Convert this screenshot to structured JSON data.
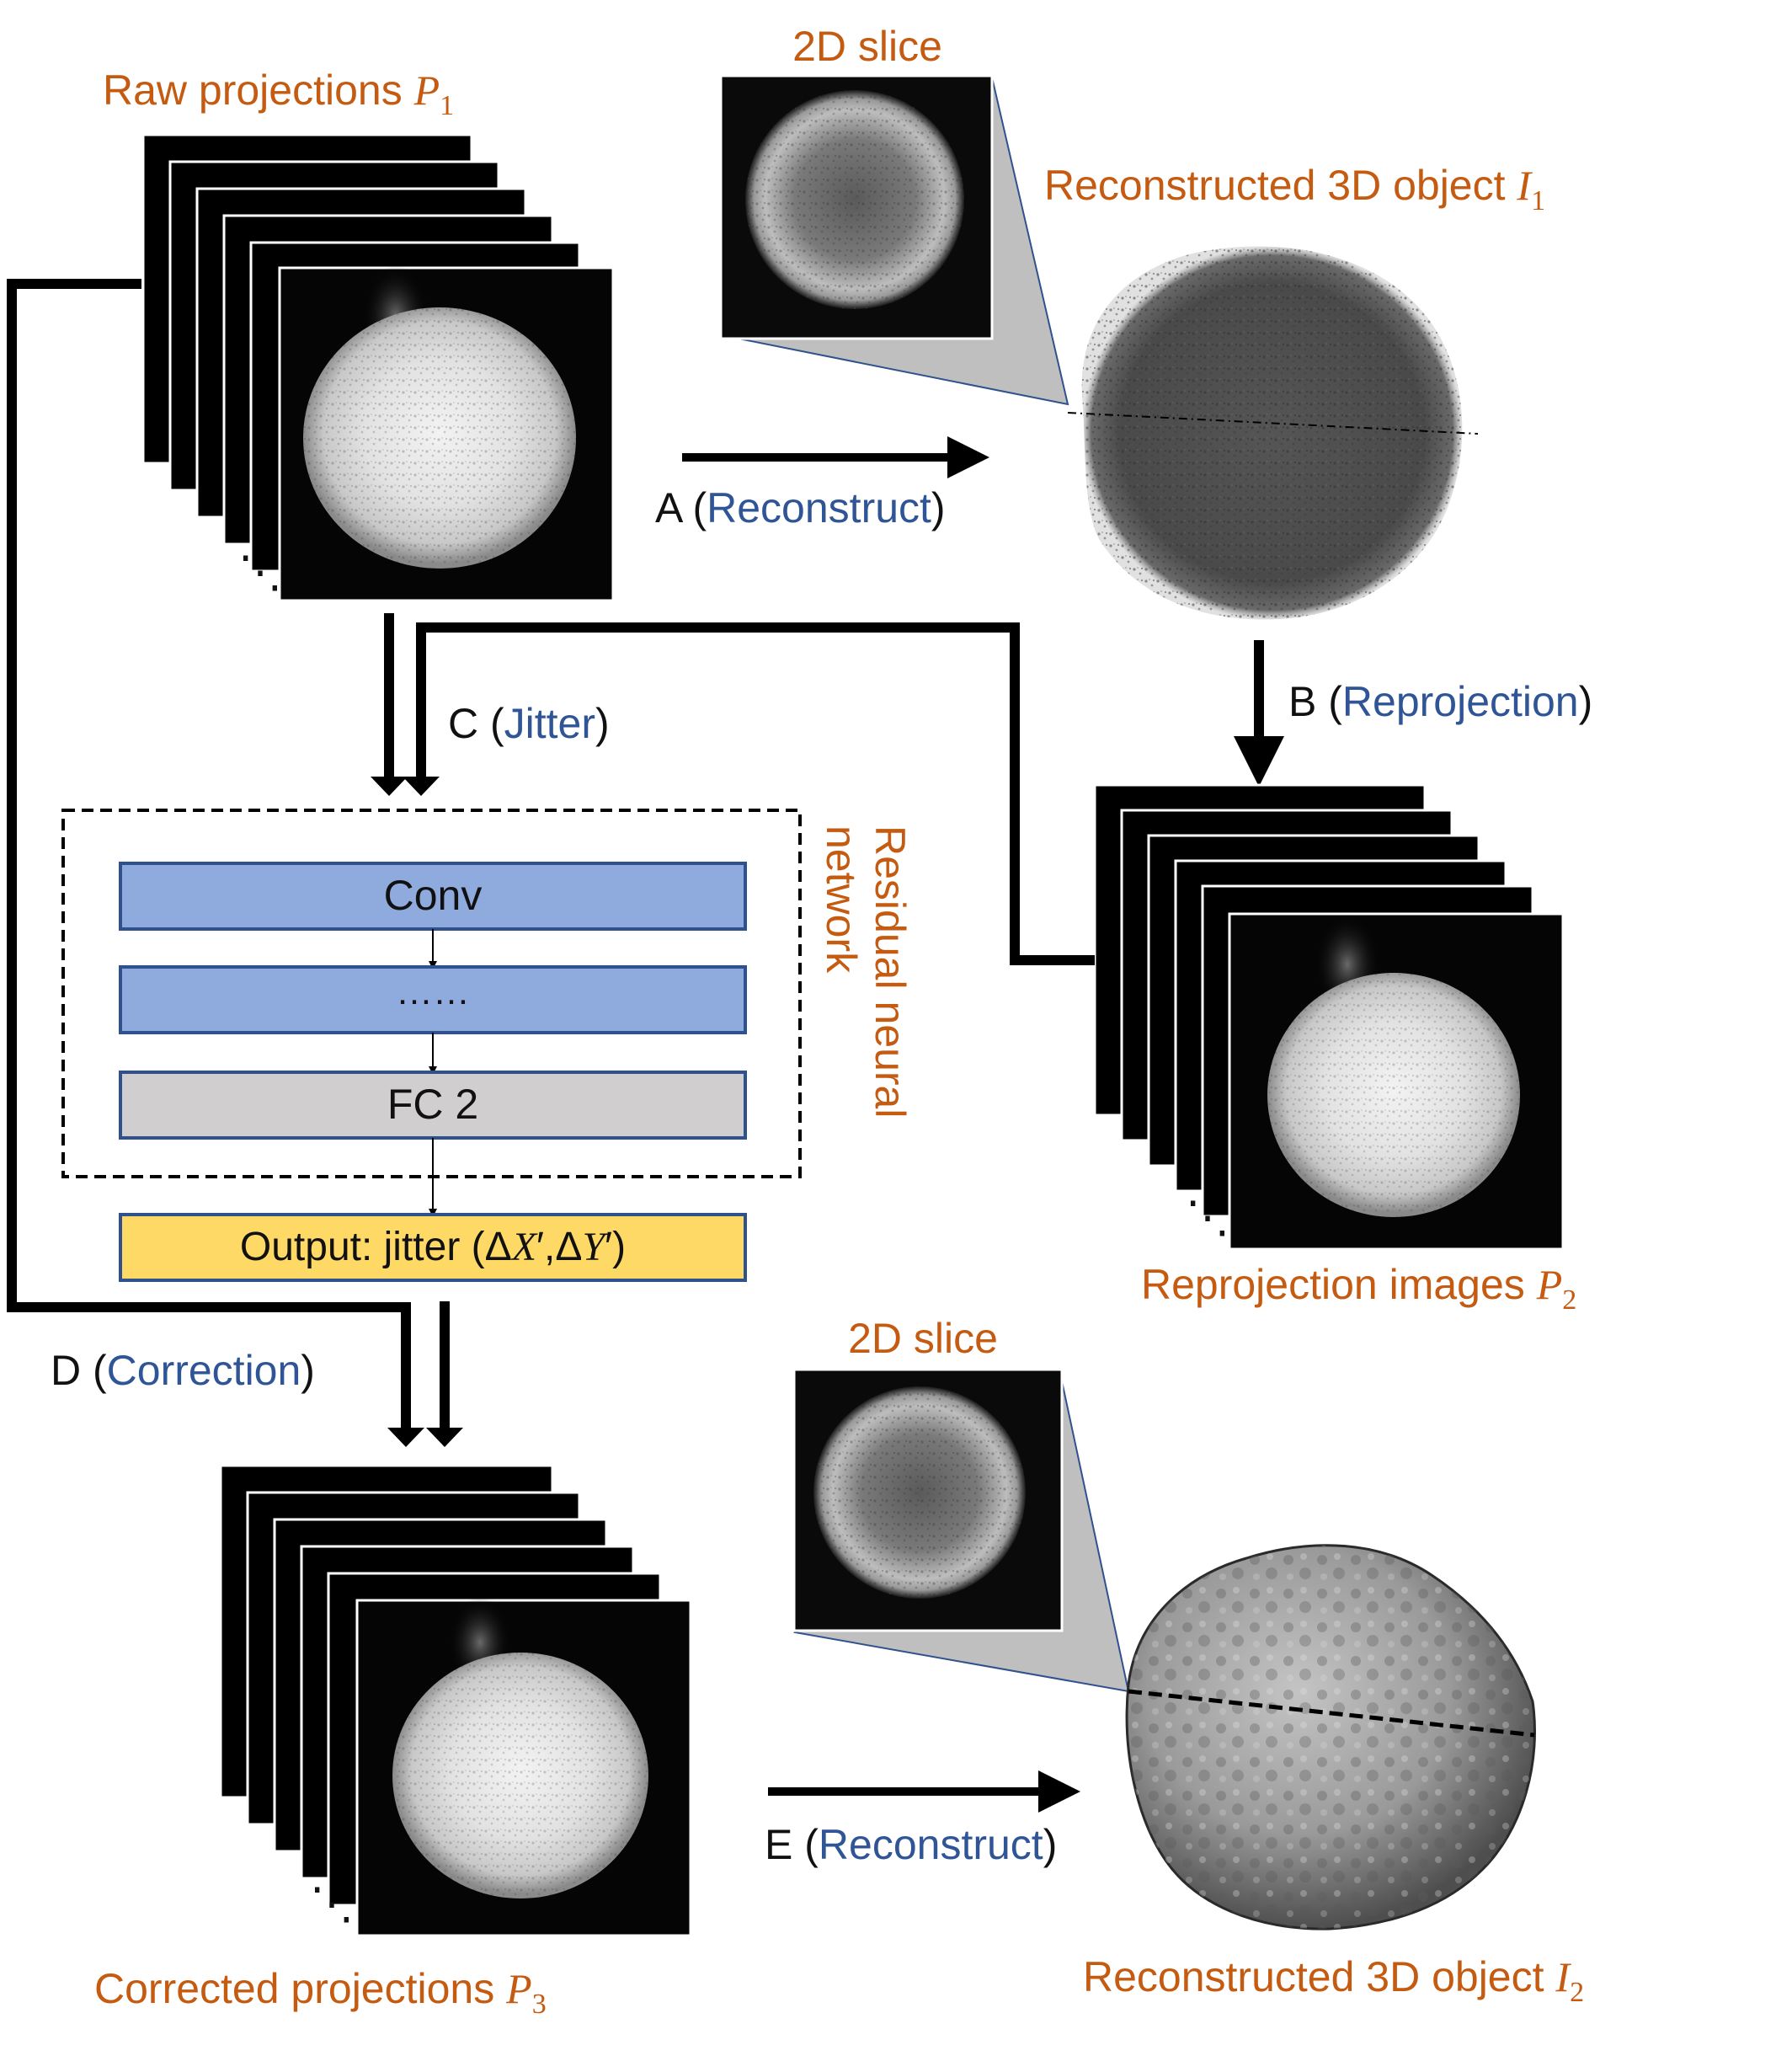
{
  "labels": {
    "raw_projections": "Raw projections",
    "raw_symbol": "P",
    "raw_sub": "1",
    "slice_top": "2D slice",
    "recon1": "Reconstructed 3D object",
    "recon1_symbol": "I",
    "recon1_sub": "1",
    "reproj_images": "Reprojection images",
    "reproj_symbol": "P",
    "reproj_sub": "2",
    "slice_bottom": "2D slice",
    "corrected": "Corrected projections",
    "corrected_symbol": "P",
    "corrected_sub": "3",
    "recon2": "Reconstructed 3D object",
    "recon2_symbol": "I",
    "recon2_sub": "2",
    "residual_line1": "Residual  neural",
    "residual_line2": "network"
  },
  "steps": {
    "a_letter": "A (",
    "a_word": "Reconstruct",
    "b_letter": "B (",
    "b_word": "Reprojection",
    "c_letter": "C (",
    "c_word": "Jitter",
    "d_letter": "D (",
    "d_word": "Correction",
    "e_letter": "E (",
    "e_word": "Reconstruct",
    "close": ")"
  },
  "network": {
    "conv": "Conv",
    "dots": "……",
    "fc": "FC 2",
    "output_prefix": "Output: jitter (Δ",
    "output_x": "X",
    "output_mid": "′,Δ",
    "output_y": "Y",
    "output_suffix": "′)"
  },
  "stack_ellipsis": "⋱",
  "colors": {
    "label_orange": "#c55a11",
    "step_blue": "#2f5597",
    "layer_blue": "#8faadc",
    "layer_gray": "#d0cece",
    "output_yellow": "#ffd966",
    "layer_border": "#2f528f"
  }
}
